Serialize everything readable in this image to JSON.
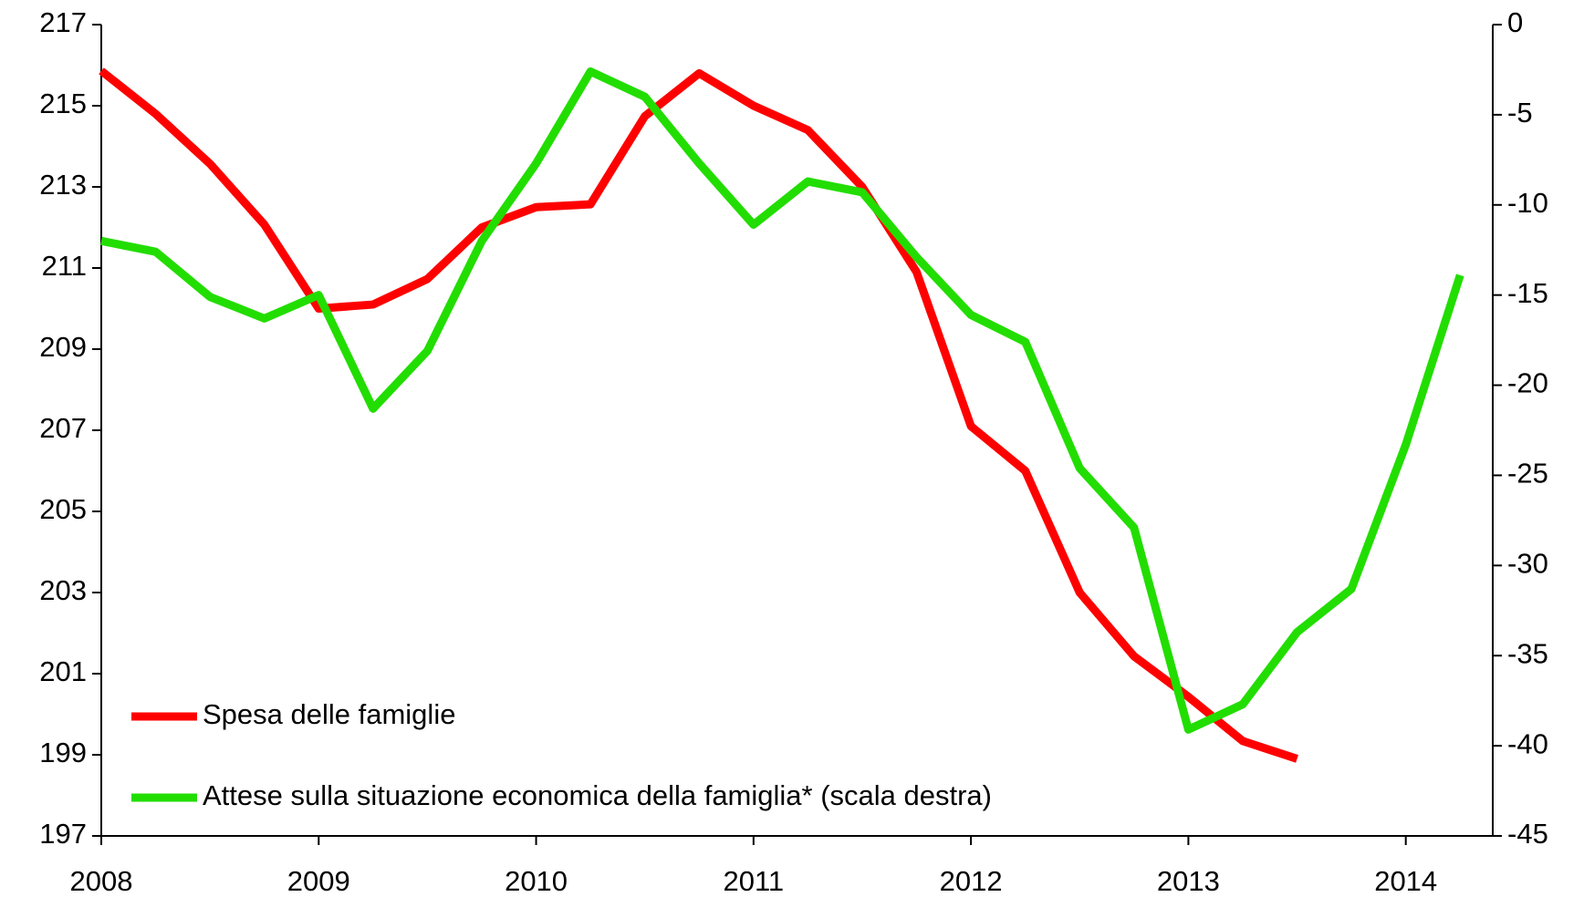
{
  "chart_data": {
    "type": "line",
    "x": [
      2008,
      2008.25,
      2008.5,
      2008.75,
      2009,
      2009.25,
      2009.5,
      2009.75,
      2010,
      2010.25,
      2010.5,
      2010.75,
      2011,
      2011.25,
      2011.5,
      2011.75,
      2012,
      2012.25,
      2012.5,
      2012.75,
      2013,
      2013.25,
      2013.5,
      2013.75,
      2014,
      2014.25
    ],
    "series": [
      {
        "name": "Spesa delle famiglie",
        "color": "#ff0000",
        "values": [
          215.86,
          214.8,
          213.57,
          212.07,
          210.0,
          210.1,
          210.73,
          212.0,
          212.5,
          212.57,
          214.74,
          215.8,
          215.0,
          214.4,
          213.0,
          210.9,
          207.1,
          206.0,
          203.0,
          201.43,
          200.43,
          199.34,
          198.9,
          null,
          null,
          null
        ]
      },
      {
        "name": "Attese sulla situazione economica della famiglia* (scala destra)",
        "color": "#22dd00",
        "axis": "y2",
        "values": [
          -12.0,
          -12.6,
          -15.1,
          -16.3,
          -15.0,
          -21.3,
          -18.1,
          -12.0,
          -7.7,
          -2.6,
          -4.0,
          -7.7,
          -11.1,
          -8.7,
          -9.3,
          -12.9,
          -16.1,
          -17.6,
          -24.6,
          -27.9,
          -39.1,
          -37.7,
          -33.7,
          -31.3,
          -23.3,
          -13.9
        ]
      }
    ],
    "xlim": [
      2008,
      2014.4
    ],
    "xticks": [
      2008,
      2009,
      2010,
      2011,
      2012,
      2013,
      2014
    ],
    "ylim": [
      197,
      217
    ],
    "yticks": [
      197,
      199,
      201,
      203,
      205,
      207,
      209,
      211,
      213,
      215,
      217
    ],
    "y2lim": [
      -45,
      0
    ],
    "y2ticks": [
      -45,
      -40,
      -35,
      -30,
      -25,
      -20,
      -15,
      -10,
      -5,
      0
    ],
    "legend": "lower left"
  }
}
